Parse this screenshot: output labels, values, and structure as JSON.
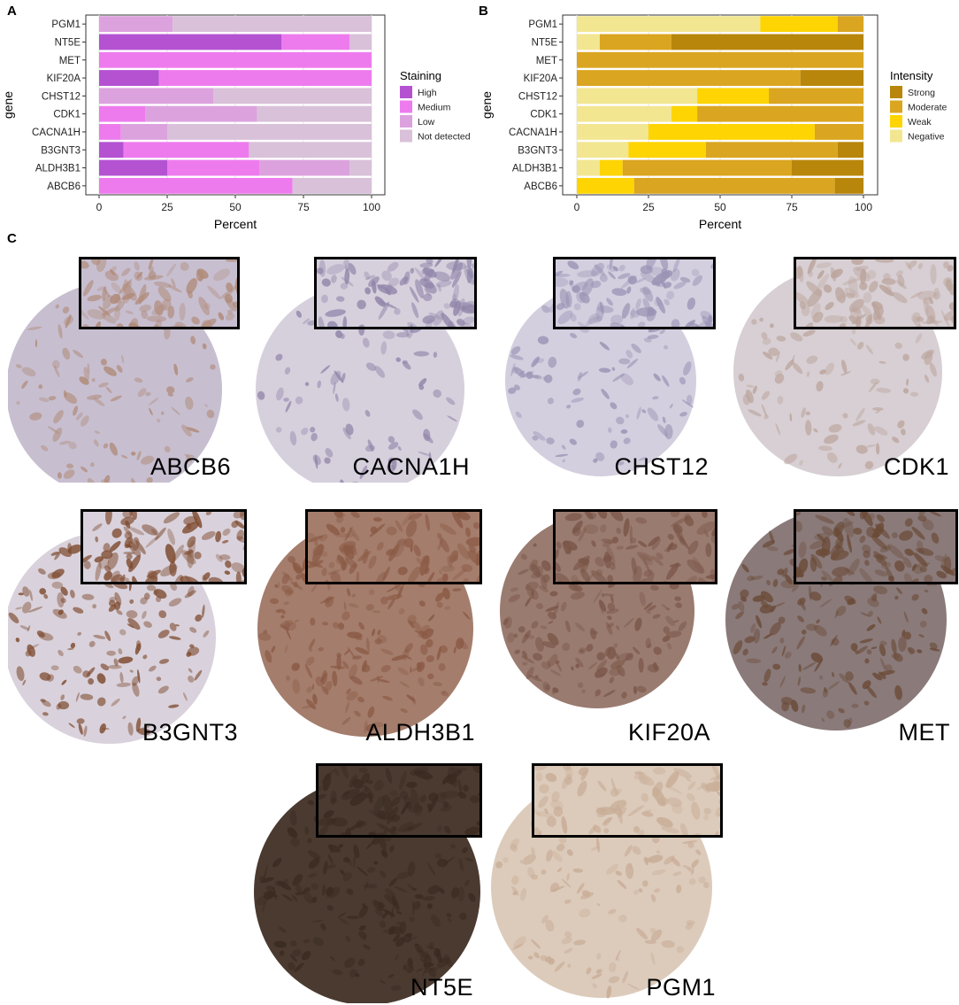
{
  "panels": {
    "a": "A",
    "b": "B",
    "c": "C"
  },
  "chart_data": [
    {
      "type": "bar",
      "orientation": "horizontal",
      "stacked": true,
      "categories": [
        "PGM1",
        "NT5E",
        "MET",
        "KIF20A",
        "CHST12",
        "CDK1",
        "CACNA1H",
        "B3GNT3",
        "ALDH3B1",
        "ABCB6"
      ],
      "series": [
        {
          "name": "High",
          "color": "#b452d2",
          "values": [
            0,
            67,
            0,
            22,
            0,
            0,
            0,
            9,
            25,
            0
          ]
        },
        {
          "name": "Medium",
          "color": "#ee7bee",
          "values": [
            0,
            25,
            100,
            78,
            0,
            17,
            8,
            46,
            34,
            71
          ]
        },
        {
          "name": "Low",
          "color": "#dca2de",
          "values": [
            27,
            0,
            0,
            0,
            42,
            41,
            17,
            0,
            33,
            0
          ]
        },
        {
          "name": "Not detected",
          "color": "#d9c1d9",
          "values": [
            73,
            8,
            0,
            0,
            58,
            42,
            75,
            45,
            8,
            29
          ]
        }
      ],
      "xlabel": "Percent",
      "ylabel": "gene",
      "xlim": [
        0,
        100
      ],
      "xticks": [
        0,
        25,
        50,
        75,
        100
      ],
      "legend_title": "Staining",
      "legend_position": "right",
      "grid": true
    },
    {
      "type": "bar",
      "orientation": "horizontal",
      "stacked": true,
      "categories": [
        "PGM1",
        "NT5E",
        "MET",
        "KIF20A",
        "CHST12",
        "CDK1",
        "CACNA1H",
        "B3GNT3",
        "ALDH3B1",
        "ABCB6"
      ],
      "series": [
        {
          "name": "Negative",
          "color": "#f2e691",
          "values": [
            64,
            8,
            0,
            0,
            42,
            33,
            25,
            18,
            8,
            0
          ]
        },
        {
          "name": "Weak",
          "color": "#fed402",
          "values": [
            27,
            0,
            0,
            0,
            25,
            9,
            58,
            27,
            8,
            20
          ]
        },
        {
          "name": "Moderate",
          "color": "#daa520",
          "values": [
            9,
            25,
            100,
            78,
            33,
            58,
            17,
            46,
            59,
            70
          ]
        },
        {
          "name": "Strong",
          "color": "#b8860b",
          "values": [
            0,
            67,
            0,
            22,
            0,
            0,
            0,
            9,
            25,
            10
          ]
        }
      ],
      "xlabel": "Percent",
      "ylabel": "gene",
      "xlim": [
        0,
        100
      ],
      "xticks": [
        0,
        25,
        50,
        75,
        100
      ],
      "legend_title": "Intensity",
      "legend_position": "right",
      "legend_order": [
        "Strong",
        "Moderate",
        "Weak",
        "Negative"
      ],
      "grid": true
    }
  ],
  "tissue_images": [
    {
      "label": "ABCB6",
      "stain": "#b08a78",
      "bg": "#c7bfd0",
      "density": 0.35
    },
    {
      "label": "CACNA1H",
      "stain": "#8f84a8",
      "bg": "#d6d0dd",
      "density": 0.25
    },
    {
      "label": "CHST12",
      "stain": "#9a93b4",
      "bg": "#d4cfdf",
      "density": 0.3
    },
    {
      "label": "CDK1",
      "stain": "#bba49c",
      "bg": "#d7cfd3",
      "density": 0.35
    },
    {
      "label": "B3GNT3",
      "stain": "#7e4a2e",
      "bg": "#d9d2dc",
      "density": 0.7
    },
    {
      "label": "ALDH3B1",
      "stain": "#8a5a45",
      "bg": "#a47d6c",
      "density": 0.9
    },
    {
      "label": "KIF20A",
      "stain": "#7a5648",
      "bg": "#9a7b70",
      "density": 0.9
    },
    {
      "label": "MET",
      "stain": "#6a4a36",
      "bg": "#8a7a7a",
      "density": 0.85
    },
    {
      "label": "NT5E",
      "stain": "#3a2a20",
      "bg": "#4a3a30",
      "density": 1.0
    },
    {
      "label": "PGM1",
      "stain": "#c8ac96",
      "bg": "#dccbbb",
      "density": 0.6
    }
  ]
}
